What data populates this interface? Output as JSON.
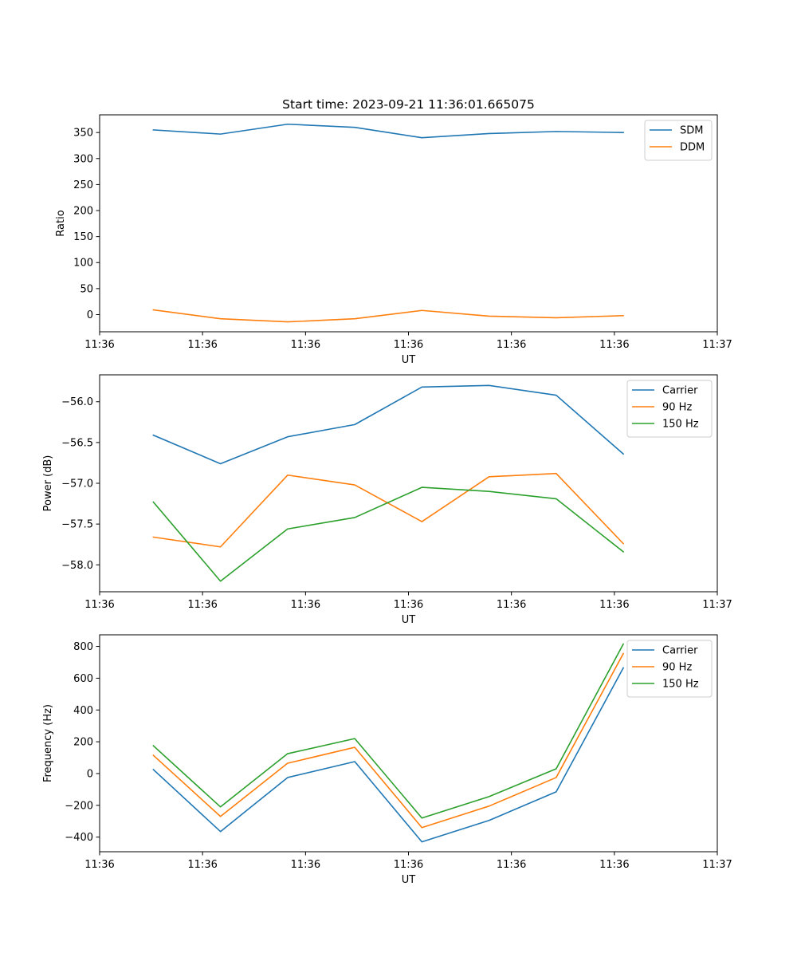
{
  "figure": {
    "title": "Start time: 2023-09-21 11:36:01.665075"
  },
  "colors": {
    "blue": "#1f77b4",
    "orange": "#ff7f0e",
    "green": "#2ca02c"
  },
  "chart_data": [
    {
      "type": "line",
      "title": "Start time: 2023-09-21 11:36:01.665075",
      "xlabel": "UT",
      "ylabel": "Ratio",
      "x": [
        1,
        2,
        3,
        4,
        5,
        6,
        7,
        8
      ],
      "xlim": [
        0.2,
        9.4
      ],
      "xticks": [
        0.2,
        1.733,
        3.267,
        4.8,
        6.333,
        7.867,
        9.4
      ],
      "xtick_labels": [
        "11:36",
        "11:36",
        "11:36",
        "11:36",
        "11:36",
        "11:36",
        "11:37"
      ],
      "ylim": [
        -33,
        384
      ],
      "yticks": [
        0,
        50,
        100,
        150,
        200,
        250,
        300,
        350
      ],
      "ytick_labels": [
        "0",
        "50",
        "100",
        "150",
        "200",
        "250",
        "300",
        "350"
      ],
      "legend_position": "top-right",
      "series": [
        {
          "name": "SDM",
          "color": "#1f77b4",
          "values": [
            355,
            347,
            366,
            360,
            340,
            348,
            352,
            350
          ]
        },
        {
          "name": "DDM",
          "color": "#ff7f0e",
          "values": [
            9,
            -8,
            -14,
            -8,
            8,
            -3,
            -6,
            -2
          ]
        }
      ]
    },
    {
      "type": "line",
      "title": "",
      "xlabel": "UT",
      "ylabel": "Power (dB)",
      "x": [
        1,
        2,
        3,
        4,
        5,
        6,
        7,
        8
      ],
      "xlim": [
        0.2,
        9.4
      ],
      "xticks": [
        0.2,
        1.733,
        3.267,
        4.8,
        6.333,
        7.867,
        9.4
      ],
      "xtick_labels": [
        "11:36",
        "11:36",
        "11:36",
        "11:36",
        "11:36",
        "11:36",
        "11:37"
      ],
      "ylim": [
        -58.33,
        -55.67
      ],
      "yticks": [
        -56.0,
        -56.5,
        -57.0,
        -57.5,
        -58.0
      ],
      "ytick_labels": [
        "−56.0",
        "−56.5",
        "−57.0",
        "−57.5",
        "−58.0"
      ],
      "legend_position": "top-right",
      "series": [
        {
          "name": "Carrier",
          "color": "#1f77b4",
          "values": [
            -56.41,
            -56.76,
            -56.43,
            -56.28,
            -55.82,
            -55.8,
            -55.92,
            -56.64
          ]
        },
        {
          "name": "90 Hz",
          "color": "#ff7f0e",
          "values": [
            -57.66,
            -57.78,
            -56.9,
            -57.02,
            -57.47,
            -56.92,
            -56.88,
            -57.74
          ]
        },
        {
          "name": "150 Hz",
          "color": "#2ca02c",
          "values": [
            -57.23,
            -58.2,
            -57.56,
            -57.42,
            -57.05,
            -57.1,
            -57.19,
            -57.84
          ]
        }
      ]
    },
    {
      "type": "line",
      "title": "",
      "xlabel": "UT",
      "ylabel": "Frequency (Hz)",
      "x": [
        1,
        2,
        3,
        4,
        5,
        6,
        7,
        8
      ],
      "xlim": [
        0.2,
        9.4
      ],
      "xticks": [
        0.2,
        1.733,
        3.267,
        4.8,
        6.333,
        7.867,
        9.4
      ],
      "xtick_labels": [
        "11:36",
        "11:36",
        "11:36",
        "11:36",
        "11:36",
        "11:36",
        "11:37"
      ],
      "ylim": [
        -492,
        873
      ],
      "yticks": [
        -400,
        -200,
        0,
        200,
        400,
        600,
        800
      ],
      "ytick_labels": [
        "−400",
        "−200",
        "0",
        "200",
        "400",
        "600",
        "800"
      ],
      "legend_position": "top-right",
      "series": [
        {
          "name": "Carrier",
          "color": "#1f77b4",
          "values": [
            25,
            -365,
            -25,
            75,
            -430,
            -295,
            -115,
            665
          ]
        },
        {
          "name": "90 Hz",
          "color": "#ff7f0e",
          "values": [
            115,
            -270,
            65,
            165,
            -340,
            -205,
            -25,
            755
          ]
        },
        {
          "name": "150 Hz",
          "color": "#2ca02c",
          "values": [
            175,
            -210,
            125,
            220,
            -280,
            -145,
            30,
            815
          ]
        }
      ]
    }
  ]
}
